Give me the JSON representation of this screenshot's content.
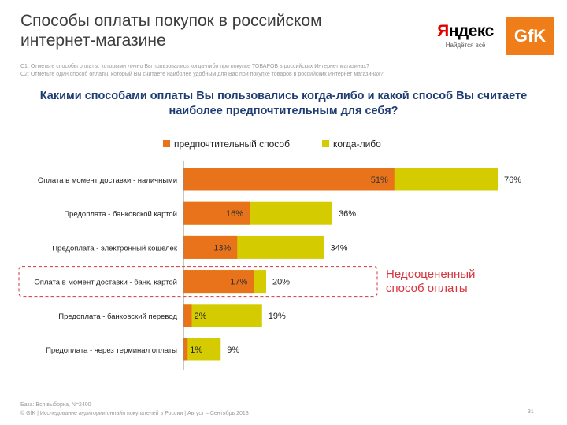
{
  "slide": {
    "title": "Способы оплаты покупок в российском интернет-магазине",
    "questions": [
      "С1: Отметьте способы оплаты, которыми лично Вы пользовались когда-либо при покупке ТОВАРОВ в российских Интернет магазинах?",
      "С2: Отметьте один способ оплаты, который Вы считаете наиболее удобным для Вас при покупке товаров в российских Интернет магазинах?"
    ],
    "subtitle_line1": "Какими способами оплаты Вы пользовались когда-либо и какой способ Вы считаете",
    "subtitle_line2": "наиболее предпочтительным для себя?",
    "callout_line1": "Недооцененный",
    "callout_line2": "способ оплаты",
    "base_note": "База: Вся выборка, N=2400",
    "footer_note": "© GfK | Исследование аудитории онлайн покупателей в России | Август – Сентябрь 2013",
    "page_number": "31"
  },
  "logos": {
    "yandex_first_letter": "Я",
    "yandex_rest": "ндекс",
    "yandex_slogan": "Найдётся всё",
    "gfk_text": "GfK"
  },
  "colors": {
    "preferred": "#e8731a",
    "ever": "#d4cc00",
    "callout": "#d5343d",
    "axis": "#8c8c8c",
    "subtitle": "#1f3d73"
  },
  "chart_data": {
    "type": "bar",
    "orientation": "horizontal",
    "stacked": false,
    "overlapping": true,
    "title": "Какими способами оплаты Вы пользовались когда-либо и какой способ Вы считаете наиболее предпочтительным для себя?",
    "legend_position": "top",
    "categories": [
      "Оплата в момент доставки - наличными",
      "Предоплата - банковской картой",
      "Предоплата - электронный кошелек",
      "Оплата в момент доставки - банк. картой",
      "Предоплата - банковский перевод",
      "Предоплата - через терминал оплаты"
    ],
    "series": [
      {
        "name": "когда-либо",
        "values": [
          76,
          36,
          34,
          20,
          19,
          9
        ],
        "labels": [
          "76%",
          "36%",
          "34%",
          "20%",
          "19%",
          "9%"
        ]
      },
      {
        "name": "предпочтительный способ",
        "values": [
          51,
          16,
          13,
          17,
          2,
          1
        ],
        "labels": [
          "51%",
          "16%",
          "13%",
          "17%",
          "2%",
          "1%"
        ]
      }
    ],
    "legend": [
      "предпочтительный способ",
      "когда-либо"
    ],
    "highlighted_category": "Оплата в момент доставки - банк. картой",
    "xlim": [
      0,
      100
    ]
  }
}
